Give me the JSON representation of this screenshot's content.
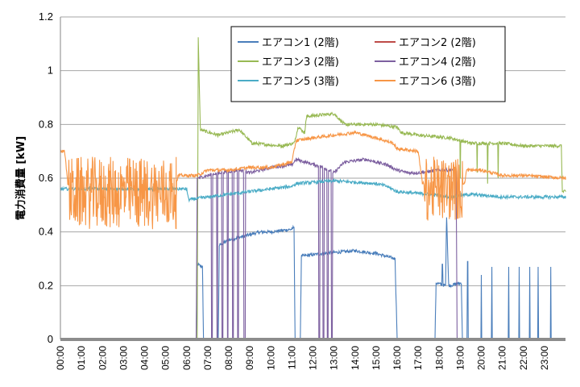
{
  "chart_data": {
    "type": "line",
    "title": "",
    "xlabel": "",
    "ylabel": "電力消費量 [kW]",
    "ylim": [
      0,
      1.2
    ],
    "xlim": [
      0,
      24
    ],
    "yticks": [
      "0",
      "0.2",
      "0.4",
      "0.6",
      "0.8",
      "1",
      "1.2"
    ],
    "xticks": [
      "00:00",
      "01:00",
      "02:00",
      "03:00",
      "04:00",
      "05:00",
      "06:00",
      "07:00",
      "08:00",
      "09:00",
      "10:00",
      "11:00",
      "12:00",
      "13:00",
      "14:00",
      "15:00",
      "16:00",
      "17:00",
      "18:00",
      "19:00",
      "20:00",
      "21:00",
      "22:00",
      "23:00"
    ],
    "grid": "horizontal",
    "legend_position": "top-right",
    "series": [
      {
        "name": "エアコン1 (2階)",
        "color": "#4a7ebb",
        "base": [
          [
            0,
            0
          ],
          [
            6.45,
            0
          ],
          [
            6.5,
            0.28
          ],
          [
            6.75,
            0.27
          ],
          [
            6.8,
            0
          ],
          [
            7.5,
            0
          ],
          [
            7.55,
            0.35
          ],
          [
            8.0,
            0.37
          ],
          [
            9.0,
            0.39
          ],
          [
            9.5,
            0.4
          ],
          [
            10.0,
            0.4
          ],
          [
            11.0,
            0.41
          ],
          [
            11.1,
            0.42
          ],
          [
            11.15,
            0
          ],
          [
            11.4,
            0
          ],
          [
            11.45,
            0.31
          ],
          [
            12.5,
            0.32
          ],
          [
            14.0,
            0.33
          ],
          [
            15.0,
            0.32
          ],
          [
            15.9,
            0.3
          ],
          [
            16.0,
            0
          ],
          [
            17.8,
            0
          ],
          [
            17.85,
            0.21
          ],
          [
            18.3,
            0.2
          ],
          [
            18.35,
            0.46
          ],
          [
            18.45,
            0.2
          ],
          [
            19.05,
            0.21
          ],
          [
            19.1,
            0
          ],
          [
            24,
            0
          ]
        ],
        "spikes": [
          [
            18.15,
            0.28
          ],
          [
            19.35,
            0.29
          ],
          [
            20.0,
            0.24
          ],
          [
            20.5,
            0.27
          ],
          [
            21.3,
            0.27
          ],
          [
            21.8,
            0.27
          ],
          [
            22.3,
            0.27
          ],
          [
            22.7,
            0.27
          ],
          [
            23.3,
            0.27
          ]
        ]
      },
      {
        "name": "エアコン2 (2階)",
        "color": "#be4b48",
        "base": [
          [
            0,
            0.003
          ],
          [
            24,
            0.003
          ]
        ]
      },
      {
        "name": "エアコン3 (2階)",
        "color": "#98b954",
        "base": [
          [
            0,
            0
          ],
          [
            6.5,
            0
          ],
          [
            6.55,
            1.12
          ],
          [
            6.65,
            0.78
          ],
          [
            7.5,
            0.76
          ],
          [
            8.5,
            0.78
          ],
          [
            9.1,
            0.73
          ],
          [
            10.5,
            0.72
          ],
          [
            11.1,
            0.73
          ],
          [
            11.3,
            0.79
          ],
          [
            11.6,
            0.77
          ],
          [
            11.7,
            0.83
          ],
          [
            13.0,
            0.84
          ],
          [
            13.5,
            0.8
          ],
          [
            15.0,
            0.8
          ],
          [
            16.0,
            0.79
          ],
          [
            16.2,
            0.77
          ],
          [
            17.0,
            0.76
          ],
          [
            18.5,
            0.75
          ],
          [
            19.0,
            0.74
          ],
          [
            19.5,
            0.73
          ],
          [
            21.0,
            0.73
          ],
          [
            22.0,
            0.72
          ],
          [
            23.8,
            0.72
          ],
          [
            23.85,
            0.55
          ],
          [
            24,
            0.55
          ]
        ],
        "spikes": [
          [
            19.0,
            0.6
          ],
          [
            19.8,
            0.62
          ],
          [
            20.3,
            0.58
          ],
          [
            20.8,
            0.6
          ]
        ]
      },
      {
        "name": "エアコン4 (2階)",
        "color": "#7d60a0",
        "base": [
          [
            0,
            0
          ],
          [
            6.45,
            0
          ],
          [
            6.5,
            0.6
          ],
          [
            7.5,
            0.62
          ],
          [
            8.5,
            0.63
          ],
          [
            9.0,
            0.62
          ],
          [
            10.0,
            0.64
          ],
          [
            11.0,
            0.65
          ],
          [
            11.2,
            0.67
          ],
          [
            12.5,
            0.64
          ],
          [
            13.0,
            0.62
          ],
          [
            13.5,
            0.66
          ],
          [
            14.5,
            0.67
          ],
          [
            15.5,
            0.65
          ],
          [
            16.0,
            0.63
          ],
          [
            16.5,
            0.62
          ],
          [
            17.0,
            0.62
          ],
          [
            18.0,
            0.63
          ],
          [
            18.8,
            0.63
          ],
          [
            18.85,
            0
          ],
          [
            24,
            0
          ]
        ],
        "dips": [
          7.2,
          7.45,
          7.7,
          7.95,
          8.2,
          8.45,
          8.75,
          12.3,
          12.5,
          12.7,
          12.9
        ]
      },
      {
        "name": "エアコン5 (3階)",
        "color": "#4bacc6",
        "base": [
          [
            0,
            0.56
          ],
          [
            6.0,
            0.56
          ],
          [
            6.1,
            0.52
          ],
          [
            7.0,
            0.53
          ],
          [
            8.0,
            0.54
          ],
          [
            9.0,
            0.55
          ],
          [
            10.0,
            0.56
          ],
          [
            11.0,
            0.57
          ],
          [
            11.2,
            0.58
          ],
          [
            13.0,
            0.59
          ],
          [
            15.0,
            0.58
          ],
          [
            15.5,
            0.57
          ],
          [
            16.0,
            0.55
          ],
          [
            17.5,
            0.54
          ],
          [
            18.5,
            0.53
          ],
          [
            19.5,
            0.54
          ],
          [
            21.0,
            0.53
          ],
          [
            24,
            0.53
          ]
        ]
      },
      {
        "name": "エアコン6 (3階)",
        "color": "#f79646",
        "base": [
          [
            0,
            0.7
          ],
          [
            0.2,
            0.7
          ],
          [
            0.35,
            0.58
          ],
          [
            5.5,
            0.58
          ],
          [
            5.6,
            0.61
          ],
          [
            6.5,
            0.61
          ],
          [
            7.0,
            0.63
          ],
          [
            8.0,
            0.63
          ],
          [
            9.0,
            0.64
          ],
          [
            10.0,
            0.64
          ],
          [
            11.0,
            0.66
          ],
          [
            11.2,
            0.74
          ],
          [
            12.0,
            0.75
          ],
          [
            13.0,
            0.76
          ],
          [
            14.0,
            0.77
          ],
          [
            15.0,
            0.75
          ],
          [
            15.8,
            0.73
          ],
          [
            16.0,
            0.71
          ],
          [
            17.0,
            0.7
          ],
          [
            17.2,
            0.58
          ],
          [
            19.2,
            0.58
          ],
          [
            19.3,
            0.63
          ],
          [
            20.0,
            0.63
          ],
          [
            21.0,
            0.61
          ],
          [
            22.0,
            0.61
          ],
          [
            24,
            0.6
          ]
        ],
        "oscillation": [
          [
            0.4,
            5.5,
            0.41,
            0.68
          ],
          [
            17.3,
            19.1,
            0.44,
            0.68
          ]
        ]
      }
    ]
  }
}
